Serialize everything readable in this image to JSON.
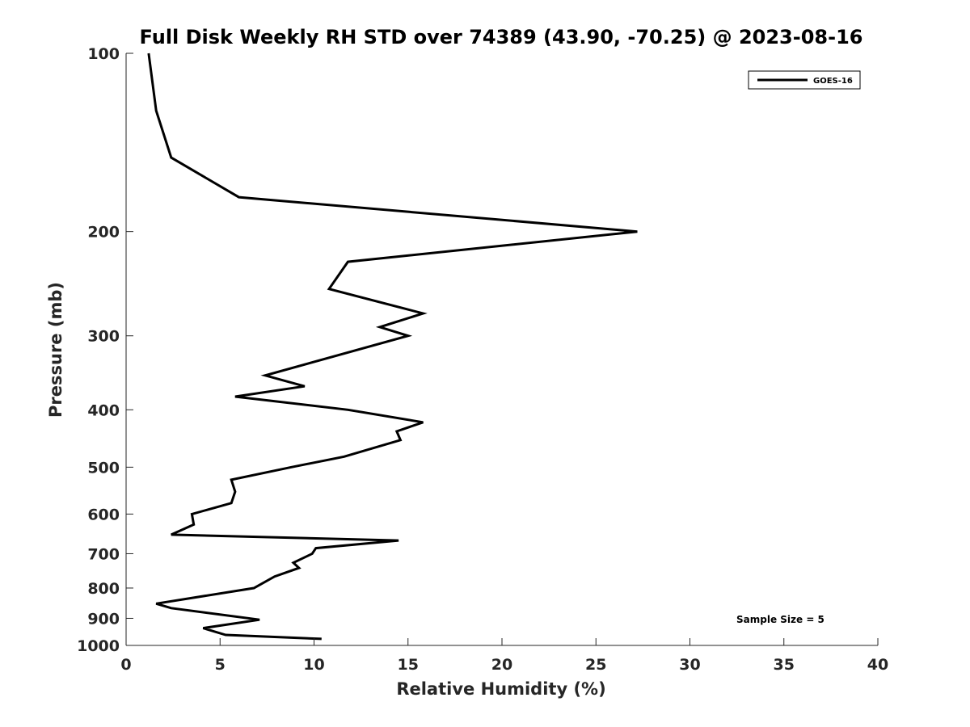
{
  "chart_data": {
    "type": "line",
    "title": "Full Disk Weekly RH STD over 74389 (43.90, -70.25) @ 2023-08-16",
    "xlabel": "Relative Humidity (%)",
    "ylabel": "Pressure (mb)",
    "xlim": [
      0,
      40
    ],
    "ylim": [
      100,
      1000
    ],
    "y_scale": "log",
    "y_reversed": true,
    "x_ticks": [
      0,
      5,
      10,
      15,
      20,
      25,
      30,
      35,
      40
    ],
    "y_ticks": [
      100,
      200,
      300,
      400,
      500,
      600,
      700,
      800,
      900,
      1000
    ],
    "grid": false,
    "legend_position": "top-right",
    "series": [
      {
        "name": "GOES-16",
        "color": "#000000",
        "points": [
          {
            "x": 1.2,
            "p": 100
          },
          {
            "x": 1.6,
            "p": 125
          },
          {
            "x": 2.4,
            "p": 150
          },
          {
            "x": 6.0,
            "p": 175
          },
          {
            "x": 27.2,
            "p": 200
          },
          {
            "x": 11.8,
            "p": 225
          },
          {
            "x": 10.8,
            "p": 250
          },
          {
            "x": 15.8,
            "p": 275
          },
          {
            "x": 13.5,
            "p": 290
          },
          {
            "x": 15.0,
            "p": 300
          },
          {
            "x": 7.4,
            "p": 350
          },
          {
            "x": 9.5,
            "p": 365
          },
          {
            "x": 5.8,
            "p": 380
          },
          {
            "x": 11.8,
            "p": 400
          },
          {
            "x": 15.8,
            "p": 420
          },
          {
            "x": 14.4,
            "p": 435
          },
          {
            "x": 14.6,
            "p": 450
          },
          {
            "x": 11.6,
            "p": 480
          },
          {
            "x": 8.8,
            "p": 500
          },
          {
            "x": 5.6,
            "p": 525
          },
          {
            "x": 5.8,
            "p": 550
          },
          {
            "x": 5.6,
            "p": 575
          },
          {
            "x": 3.5,
            "p": 600
          },
          {
            "x": 3.6,
            "p": 625
          },
          {
            "x": 2.4,
            "p": 650
          },
          {
            "x": 14.5,
            "p": 665
          },
          {
            "x": 10.1,
            "p": 685
          },
          {
            "x": 9.9,
            "p": 700
          },
          {
            "x": 8.9,
            "p": 725
          },
          {
            "x": 9.2,
            "p": 740
          },
          {
            "x": 7.9,
            "p": 765
          },
          {
            "x": 6.8,
            "p": 800
          },
          {
            "x": 1.6,
            "p": 850
          },
          {
            "x": 2.4,
            "p": 865
          },
          {
            "x": 7.1,
            "p": 905
          },
          {
            "x": 4.1,
            "p": 935
          },
          {
            "x": 5.3,
            "p": 960
          },
          {
            "x": 10.4,
            "p": 975
          }
        ]
      }
    ],
    "annotations": [
      {
        "text": "Sample Size = 5"
      }
    ]
  }
}
